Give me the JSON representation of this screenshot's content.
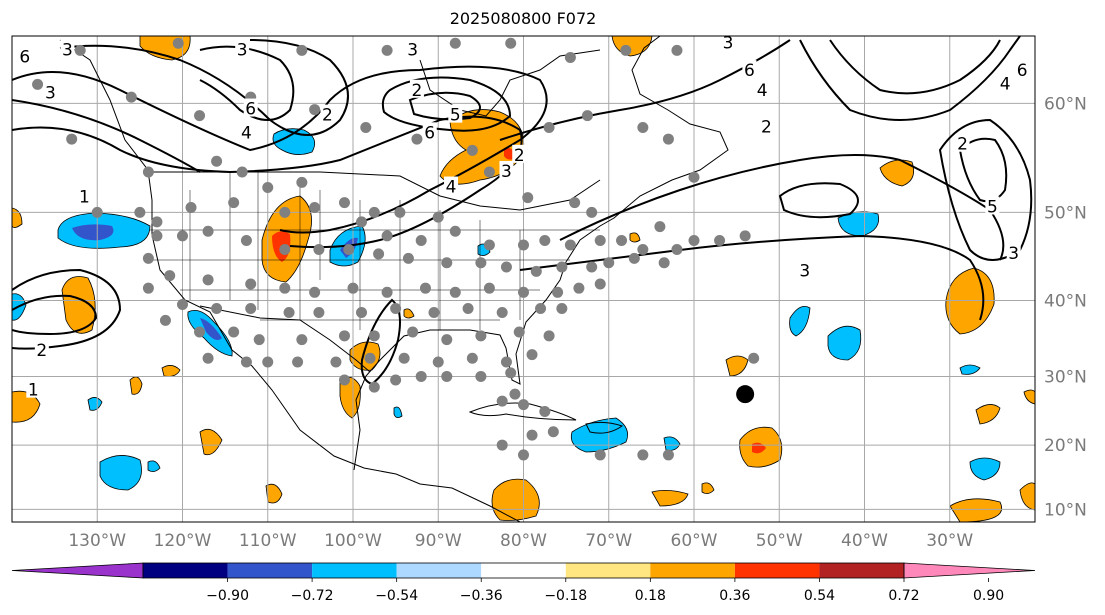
{
  "title": "2025080800 F072",
  "map": {
    "lon_min": -140,
    "lon_max": -20,
    "lat_min": 8,
    "lat_max": 65,
    "lon_gridlines": [
      -130,
      -120,
      -110,
      -100,
      -90,
      -80,
      -70,
      -60,
      -50,
      -40,
      -30
    ],
    "lat_gridlines": [
      10,
      20,
      30,
      40,
      50,
      60
    ],
    "lon_tick_labels": [
      "130°W",
      "120°W",
      "110°W",
      "100°W",
      "90°W",
      "80°W",
      "70°W",
      "60°W",
      "50°W",
      "40°W",
      "30°W"
    ],
    "lat_tick_labels": [
      "10°N",
      "20°N",
      "30°N",
      "40°N",
      "50°N",
      "60°N"
    ],
    "land_outline_color": "#000000",
    "grid_color": "#a8a8a8"
  },
  "colorbar": {
    "colors": [
      "#9933cc",
      "#000080",
      "#3355cc",
      "#00bfff",
      "#add8ff",
      "#ffffff",
      "#ffe680",
      "#ffa500",
      "#ff3300",
      "#b22222",
      "#ff88bb"
    ],
    "tick_labels": [
      "−0.90",
      "−0.72",
      "−0.54",
      "−0.36",
      "−0.18",
      "0.18",
      "0.36",
      "0.54",
      "0.72",
      "0.90"
    ],
    "extend": "both"
  },
  "contour_labels": [
    {
      "text": "3",
      "lon": -135.5,
      "lat": 60.8
    },
    {
      "text": "6",
      "lon": -138.5,
      "lat": 63.5
    },
    {
      "text": "3",
      "lon": -133.5,
      "lat": 64.0
    },
    {
      "text": "1",
      "lon": -131.5,
      "lat": 51.5
    },
    {
      "text": "3",
      "lon": -113.0,
      "lat": 64.0
    },
    {
      "text": "6",
      "lon": -112.0,
      "lat": 59.5
    },
    {
      "text": "4",
      "lon": -112.5,
      "lat": 57.5
    },
    {
      "text": "2",
      "lon": -103.0,
      "lat": 59.0
    },
    {
      "text": "3",
      "lon": -93.0,
      "lat": 64.0
    },
    {
      "text": "2",
      "lon": -92.5,
      "lat": 61.0
    },
    {
      "text": "6",
      "lon": -91.0,
      "lat": 57.5
    },
    {
      "text": "5",
      "lon": -88.0,
      "lat": 59.0
    },
    {
      "text": "4",
      "lon": -88.5,
      "lat": 52.5
    },
    {
      "text": "3",
      "lon": -82.0,
      "lat": 54.0
    },
    {
      "text": "2",
      "lon": -80.5,
      "lat": 55.5
    },
    {
      "text": "3",
      "lon": -56.0,
      "lat": 64.5
    },
    {
      "text": "6",
      "lon": -53.5,
      "lat": 62.5
    },
    {
      "text": "4",
      "lon": -52.0,
      "lat": 61.0
    },
    {
      "text": "2",
      "lon": -51.5,
      "lat": 58.0
    },
    {
      "text": "3",
      "lon": -47.0,
      "lat": 43.5
    },
    {
      "text": "2",
      "lon": -28.5,
      "lat": 56.5
    },
    {
      "text": "5",
      "lon": -25.0,
      "lat": 50.5
    },
    {
      "text": "3",
      "lon": -22.5,
      "lat": 45.5
    },
    {
      "text": "4",
      "lon": -23.5,
      "lat": 61.5
    },
    {
      "text": "6",
      "lon": -21.5,
      "lat": 62.5
    },
    {
      "text": "2",
      "lon": -136.5,
      "lat": 33.5
    },
    {
      "text": "1",
      "lon": -137.5,
      "lat": 28.0
    }
  ],
  "stations": [
    [
      -132,
      64
    ],
    [
      -120.5,
      64.5
    ],
    [
      -106,
      64
    ],
    [
      -96,
      64
    ],
    [
      -88,
      64.5
    ],
    [
      -81.5,
      64.5
    ],
    [
      -74.5,
      63.5
    ],
    [
      -68,
      64
    ],
    [
      -62,
      64
    ],
    [
      -137,
      61.5
    ],
    [
      -126,
      60.5
    ],
    [
      -118,
      59
    ],
    [
      -112,
      60.5
    ],
    [
      -104.5,
      59.5
    ],
    [
      -98.5,
      58
    ],
    [
      -92.5,
      57
    ],
    [
      -86,
      56
    ],
    [
      -77,
      58
    ],
    [
      -72.5,
      59
    ],
    [
      -66,
      58
    ],
    [
      -63,
      57
    ],
    [
      -133,
      57
    ],
    [
      -124,
      54
    ],
    [
      -116,
      55
    ],
    [
      -113,
      54
    ],
    [
      -110,
      52.5
    ],
    [
      -106,
      53
    ],
    [
      -101,
      51
    ],
    [
      -97.5,
      50
    ],
    [
      -94.5,
      50
    ],
    [
      -90,
      49.5
    ],
    [
      -84,
      54
    ],
    [
      -79.5,
      51.5
    ],
    [
      -74,
      51
    ],
    [
      -72,
      50
    ],
    [
      -64,
      48.5
    ],
    [
      -60,
      53.5
    ],
    [
      -57,
      47
    ],
    [
      -54,
      47.5
    ],
    [
      -130,
      50
    ],
    [
      -125,
      50
    ],
    [
      -123,
      49
    ],
    [
      -119,
      50.5
    ],
    [
      -114,
      51
    ],
    [
      -108,
      50
    ],
    [
      -104.5,
      50.5
    ],
    [
      -99,
      49
    ],
    [
      -96,
      47.5
    ],
    [
      -92,
      47
    ],
    [
      -88,
      48
    ],
    [
      -84,
      46.5
    ],
    [
      -80,
      46.5
    ],
    [
      -77.5,
      47
    ],
    [
      -74.5,
      46.5
    ],
    [
      -71,
      47
    ],
    [
      -68.5,
      47
    ],
    [
      -66,
      46
    ],
    [
      -63.5,
      44.5
    ],
    [
      -62,
      46
    ],
    [
      -60,
      47
    ],
    [
      -123,
      47.5
    ],
    [
      -120,
      47.5
    ],
    [
      -117,
      48
    ],
    [
      -112.5,
      47
    ],
    [
      -108,
      46
    ],
    [
      -104,
      46
    ],
    [
      -100.5,
      46
    ],
    [
      -97,
      45.5
    ],
    [
      -93.5,
      45
    ],
    [
      -89,
      44.5
    ],
    [
      -85,
      44.5
    ],
    [
      -82,
      44
    ],
    [
      -78.5,
      43.5
    ],
    [
      -75.5,
      44
    ],
    [
      -72,
      44
    ],
    [
      -70,
      44.5
    ],
    [
      -67,
      45
    ],
    [
      -124,
      45
    ],
    [
      -121.5,
      43
    ],
    [
      -117,
      42.5
    ],
    [
      -112,
      42
    ],
    [
      -108,
      41.5
    ],
    [
      -104.5,
      41
    ],
    [
      -100,
      41.5
    ],
    [
      -96,
      41
    ],
    [
      -91.5,
      41.5
    ],
    [
      -88,
      41
    ],
    [
      -84,
      41.5
    ],
    [
      -80,
      41
    ],
    [
      -76,
      41
    ],
    [
      -73.5,
      41.5
    ],
    [
      -71,
      42
    ],
    [
      -124,
      41.5
    ],
    [
      -120,
      39.5
    ],
    [
      -116,
      39
    ],
    [
      -112,
      39
    ],
    [
      -107.5,
      38.5
    ],
    [
      -104,
      38.5
    ],
    [
      -99,
      38.5
    ],
    [
      -95,
      39
    ],
    [
      -90.5,
      38.5
    ],
    [
      -86.5,
      39
    ],
    [
      -82.5,
      38.5
    ],
    [
      -78,
      39
    ],
    [
      -75.5,
      39
    ],
    [
      -122,
      37.5
    ],
    [
      -118,
      36
    ],
    [
      -114,
      36
    ],
    [
      -111,
      35
    ],
    [
      -106,
      35
    ],
    [
      -101,
      35.5
    ],
    [
      -97.5,
      35.5
    ],
    [
      -93,
      36
    ],
    [
      -89,
      35
    ],
    [
      -85,
      35.5
    ],
    [
      -80.5,
      36
    ],
    [
      -77,
      35.5
    ],
    [
      -117,
      32.5
    ],
    [
      -112.5,
      32
    ],
    [
      -110,
      32
    ],
    [
      -106.5,
      32
    ],
    [
      -102,
      32
    ],
    [
      -98,
      32.5
    ],
    [
      -94,
      32.5
    ],
    [
      -90,
      32
    ],
    [
      -86,
      32.5
    ],
    [
      -82,
      32
    ],
    [
      -79,
      33
    ],
    [
      -101,
      29.5
    ],
    [
      -97.5,
      28.5
    ],
    [
      -95,
      29.5
    ],
    [
      -92,
      30
    ],
    [
      -89,
      30
    ],
    [
      -85,
      30
    ],
    [
      -81.5,
      30.5
    ],
    [
      -81,
      27.5
    ],
    [
      -80,
      26
    ],
    [
      -82.5,
      26.5
    ],
    [
      -77.5,
      25
    ],
    [
      -76.5,
      22
    ],
    [
      -79,
      21.5
    ],
    [
      -82.5,
      20
    ],
    [
      -80,
      18.5
    ],
    [
      -71,
      18.5
    ],
    [
      -66,
      18.5
    ],
    [
      -63,
      18.5
    ],
    [
      -53,
      32.5
    ]
  ],
  "marker_large": {
    "lon": -54,
    "lat": 27.5
  }
}
